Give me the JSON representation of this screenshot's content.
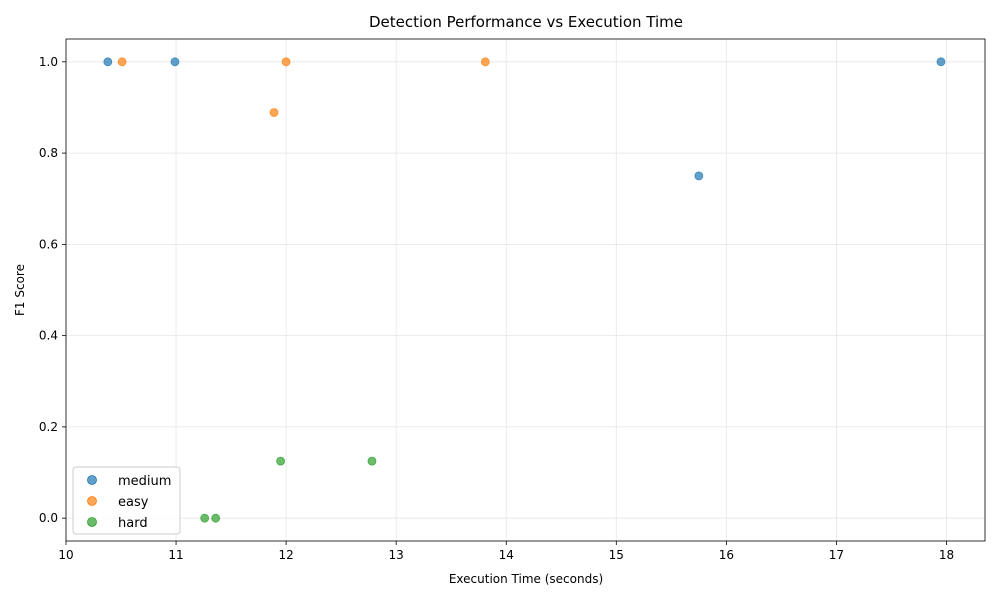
{
  "chart_data": {
    "type": "scatter",
    "title": "Detection Performance vs Execution Time",
    "xlabel": "Execution Time (seconds)",
    "ylabel": "F1 Score",
    "xlim": [
      10.0,
      18.35
    ],
    "ylim": [
      -0.05,
      1.05
    ],
    "xticks": [
      10,
      11,
      12,
      13,
      14,
      15,
      16,
      17,
      18
    ],
    "yticks": [
      0.0,
      0.2,
      0.4,
      0.6,
      0.8,
      1.0
    ],
    "grid": true,
    "legend_position": "lower-left",
    "series": [
      {
        "name": "medium",
        "color": "#1f77b4",
        "points": [
          {
            "x": 10.38,
            "y": 1.0
          },
          {
            "x": 10.99,
            "y": 1.0
          },
          {
            "x": 15.75,
            "y": 0.75
          },
          {
            "x": 17.95,
            "y": 1.0
          }
        ]
      },
      {
        "name": "easy",
        "color": "#ff7f0e",
        "points": [
          {
            "x": 10.51,
            "y": 1.0
          },
          {
            "x": 11.89,
            "y": 0.889
          },
          {
            "x": 12.0,
            "y": 1.0
          },
          {
            "x": 13.81,
            "y": 1.0
          }
        ]
      },
      {
        "name": "hard",
        "color": "#2ca02c",
        "points": [
          {
            "x": 11.26,
            "y": 0.0
          },
          {
            "x": 11.36,
            "y": 0.0
          },
          {
            "x": 11.95,
            "y": 0.125
          },
          {
            "x": 12.78,
            "y": 0.125
          }
        ]
      }
    ]
  }
}
